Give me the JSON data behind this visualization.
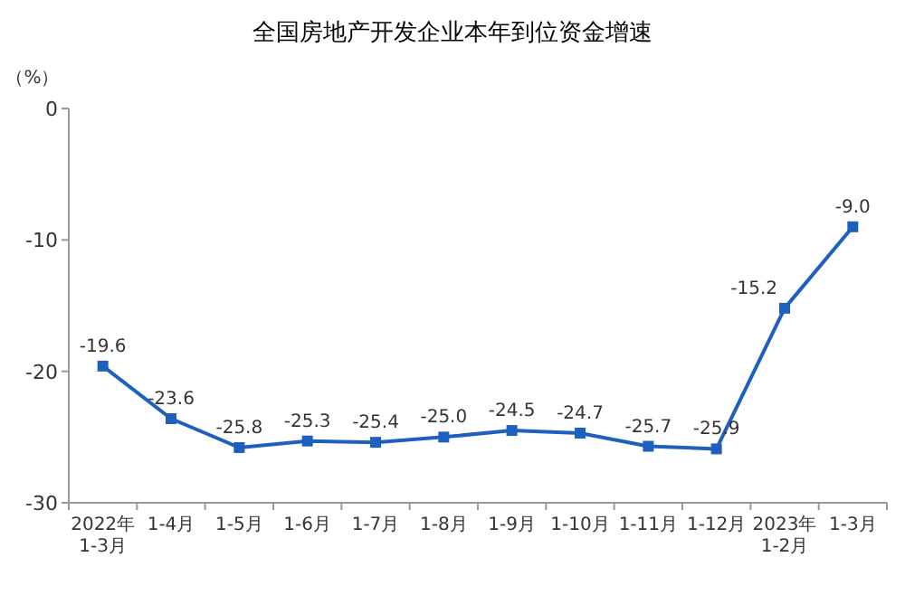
{
  "chart_data": {
    "type": "line",
    "title": "全国房地产开发企业本年到位资金增速",
    "ylabel": "（%）",
    "categories": [
      "2022年\n1-3月",
      "1-4月",
      "1-5月",
      "1-6月",
      "1-7月",
      "1-8月",
      "1-9月",
      "1-10月",
      "1-11月",
      "1-12月",
      "2023年\n1-2月",
      "1-3月"
    ],
    "series": [
      {
        "color": "#1f5fbf",
        "values": [
          -19.6,
          -23.6,
          -25.8,
          -25.3,
          -25.4,
          -25.0,
          -24.5,
          -24.7,
          -25.7,
          -25.9,
          -15.2,
          -9.0
        ],
        "value_labels": [
          "-19.6",
          "-23.6",
          "-25.8",
          "-25.3",
          "-25.4",
          "-25.0",
          "-24.5",
          "-24.7",
          "-25.7",
          "-25.9",
          "-15.2",
          "-9.0"
        ]
      }
    ],
    "ylim": [
      -30,
      0
    ],
    "yticks": [
      0,
      -10,
      -20,
      -30
    ],
    "marker": "square",
    "grid": false
  }
}
